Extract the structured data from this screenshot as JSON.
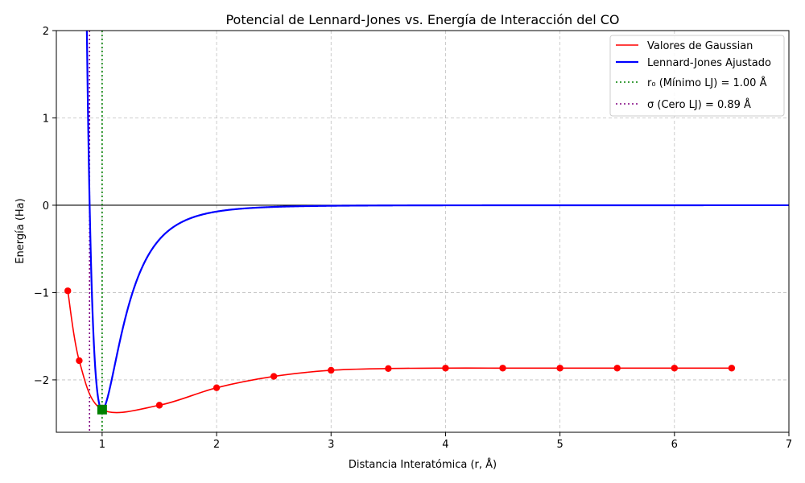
{
  "chart_data": {
    "type": "line",
    "title": "Potencial de Lennard-Jones vs. Energía de Interacción del CO",
    "xlabel": "Distancia Interatómica (r, Å)",
    "ylabel": "Energía (Ha)",
    "xlim": [
      0.6,
      7.0
    ],
    "ylim": [
      -2.6,
      2.0
    ],
    "xticks": [
      1,
      2,
      3,
      4,
      5,
      6,
      7
    ],
    "yticks": [
      -2,
      -1,
      0,
      1,
      2
    ],
    "ytick_labels": [
      "−2",
      "−1",
      "0",
      "1",
      "2"
    ],
    "grid": true,
    "legend_position": "top-right",
    "series": [
      {
        "name": "Valores de Gaussian",
        "color": "#ff0000",
        "kind": "line-with-markers",
        "x": [
          0.7,
          0.8,
          1.0,
          1.5,
          2.0,
          2.5,
          3.0,
          3.5,
          4.0,
          4.5,
          5.0,
          5.5,
          6.0,
          6.5
        ],
        "y": [
          -0.98,
          -1.78,
          -2.34,
          -2.29,
          -2.09,
          -1.96,
          -1.89,
          -1.87,
          -1.865,
          -1.865,
          -1.865,
          -1.865,
          -1.865,
          -1.865
        ]
      },
      {
        "name": "Lennard-Jones Ajustado",
        "color": "#0000ff",
        "kind": "line",
        "epsilon": 2.34,
        "r0": 1.0
      },
      {
        "name": "r₀ (Mínimo LJ) = 1.00 Å",
        "color": "#008000",
        "kind": "vline",
        "x": 1.0
      },
      {
        "name": "σ (Cero LJ) = 0.89 Å",
        "color": "#800080",
        "kind": "vline",
        "x": 0.89
      }
    ],
    "minimum_marker": {
      "x": 1.0,
      "y": -2.34,
      "color": "#008000"
    },
    "zero_line": {
      "y": 0,
      "color": "#000000"
    }
  }
}
